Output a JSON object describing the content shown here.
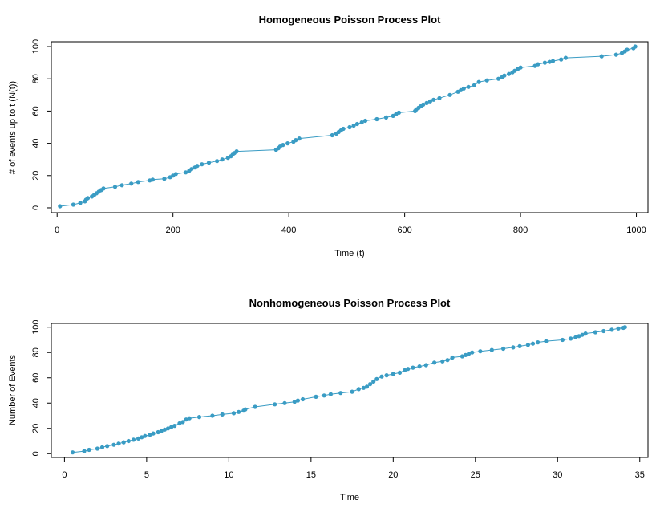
{
  "colors": {
    "series": "#3a9cc4",
    "point": "#3a9cc4"
  },
  "chart_data": [
    {
      "type": "line",
      "title": "Homogeneous Poisson Process Plot",
      "xlabel": "Time (t)",
      "ylabel": "# of events up to t (N(t))",
      "xlim": [
        -10,
        1020
      ],
      "ylim": [
        -3,
        103
      ],
      "xticks": [
        0,
        200,
        400,
        600,
        800,
        1000
      ],
      "yticks": [
        0,
        20,
        40,
        60,
        80,
        100
      ],
      "series": [
        {
          "x": [
            5,
            28,
            40,
            48,
            50,
            53,
            60,
            64,
            68,
            72,
            76,
            80,
            100,
            112,
            128,
            140,
            160,
            165,
            185,
            195,
            200,
            205,
            222,
            228,
            232,
            238,
            242,
            250,
            262,
            276,
            285,
            295,
            300,
            303,
            306,
            310,
            378,
            382,
            385,
            390,
            398,
            408,
            412,
            418,
            475,
            482,
            486,
            490,
            494,
            505,
            512,
            518,
            526,
            532,
            552,
            568,
            580,
            585,
            590,
            618,
            620,
            624,
            628,
            632,
            638,
            644,
            650,
            660,
            678,
            692,
            697,
            702,
            710,
            720,
            728,
            742,
            762,
            768,
            772,
            780,
            786,
            790,
            795,
            800,
            825,
            830,
            842,
            850,
            856,
            870,
            878,
            940,
            965,
            975,
            980,
            984,
            995,
            998
          ],
          "y": [
            1,
            2,
            3,
            4,
            5,
            6,
            7,
            8,
            9,
            10,
            11,
            12,
            13,
            14,
            15,
            16,
            17,
            17.5,
            18,
            19,
            20,
            21,
            22,
            23,
            24,
            25,
            26,
            27,
            28,
            29,
            30,
            31,
            32,
            33,
            34,
            35,
            36,
            37,
            38,
            39,
            40,
            41,
            42,
            43,
            45,
            46,
            47,
            48,
            49,
            50,
            51,
            52,
            53,
            54,
            55,
            56,
            57,
            58,
            59,
            60,
            61,
            62,
            63,
            64,
            65,
            66,
            67,
            68,
            70,
            72,
            73,
            74,
            75,
            76,
            78,
            79,
            80,
            81,
            82,
            83,
            84,
            85,
            86,
            87,
            88,
            89,
            90,
            90.5,
            91,
            92,
            93,
            94,
            95,
            96,
            97,
            98,
            99,
            100
          ]
        }
      ]
    },
    {
      "type": "line",
      "title": "Nonhomogeneous Poisson Process Plot",
      "xlabel": "Time",
      "ylabel": "Number of Events",
      "xlim": [
        -0.8,
        35.5
      ],
      "ylim": [
        -3,
        103
      ],
      "xticks": [
        0,
        5,
        10,
        15,
        20,
        25,
        30,
        35
      ],
      "yticks": [
        0,
        20,
        40,
        60,
        80,
        100
      ],
      "series": [
        {
          "x": [
            0.5,
            1.2,
            1.5,
            2.0,
            2.3,
            2.6,
            3.0,
            3.3,
            3.6,
            3.9,
            4.2,
            4.5,
            4.7,
            4.9,
            5.2,
            5.4,
            5.7,
            5.9,
            6.1,
            6.3,
            6.5,
            6.7,
            7.0,
            7.2,
            7.4,
            7.6,
            8.2,
            9.0,
            9.6,
            10.3,
            10.6,
            10.9,
            11.0,
            11.6,
            12.8,
            13.4,
            14.0,
            14.2,
            14.5,
            15.3,
            15.8,
            16.2,
            16.8,
            17.5,
            17.9,
            18.2,
            18.4,
            18.6,
            18.8,
            19.0,
            19.3,
            19.6,
            20.0,
            20.4,
            20.7,
            20.9,
            21.2,
            21.6,
            22.0,
            22.5,
            23.0,
            23.3,
            23.6,
            24.2,
            24.4,
            24.6,
            24.8,
            25.3,
            26.0,
            26.7,
            27.3,
            27.7,
            28.2,
            28.5,
            28.8,
            29.3,
            30.3,
            30.8,
            31.1,
            31.3,
            31.5,
            31.7,
            32.3,
            32.8,
            33.3,
            33.7,
            34.0,
            34.1
          ],
          "y": [
            1,
            2,
            3,
            4,
            5,
            6,
            7,
            8,
            9,
            10,
            11,
            12,
            13,
            14,
            15,
            16,
            17,
            18,
            19,
            20,
            21,
            22,
            24,
            25,
            27,
            28,
            29,
            30,
            31,
            32,
            33,
            34,
            35,
            37,
            39,
            40,
            41,
            42,
            43,
            45,
            46,
            47,
            48,
            49,
            51,
            52,
            53,
            55,
            57,
            59,
            61,
            62,
            63,
            64,
            66,
            67,
            68,
            69,
            70,
            72,
            73,
            74,
            76,
            77,
            78,
            79,
            80,
            81,
            82,
            83,
            84,
            85,
            86,
            87,
            88,
            89,
            90,
            91,
            92,
            93,
            94,
            95,
            96,
            97,
            98,
            99,
            99.5,
            100
          ]
        }
      ]
    }
  ]
}
